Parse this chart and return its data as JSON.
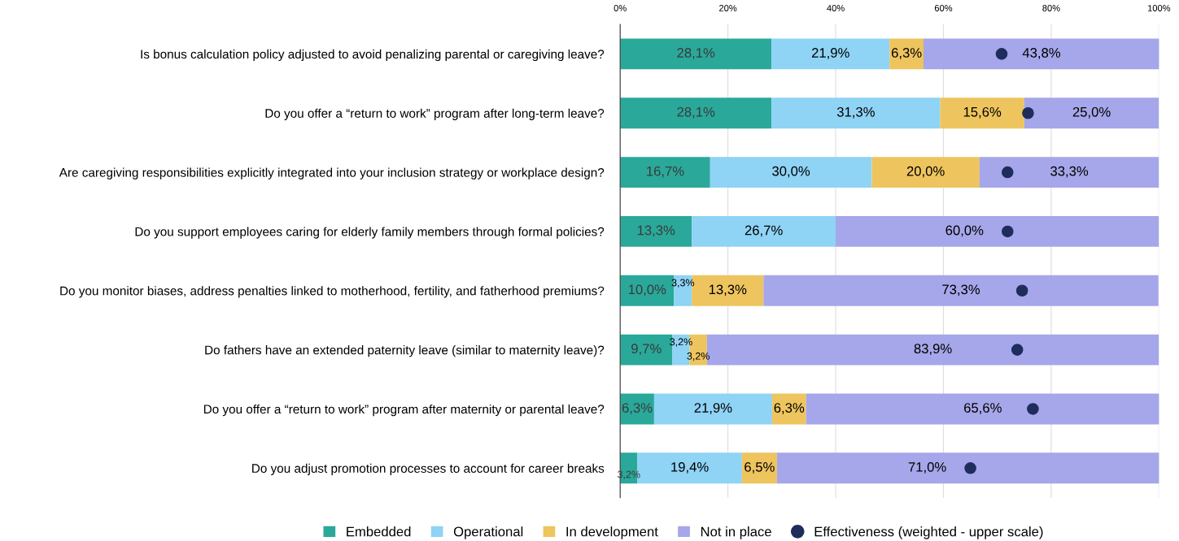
{
  "chart_data": {
    "type": "bar",
    "orientation": "horizontal",
    "stacked": true,
    "grid": "x",
    "legend": "bottom",
    "tick_labels": "x",
    "categories": [
      "Is bonus calculation policy adjusted to avoid penalizing parental or caregiving leave?",
      "Do you offer a “return to work” program after long-term leave?",
      "Are caregiving responsibilities explicitly integrated into your inclusion strategy or workplace design?",
      "Do you support employees caring for elderly family members through formal policies?",
      "Do you monitor biases, address penalties linked to motherhood, fertility, and fatherhood premiums?",
      "Do fathers have an extended paternity leave (similar to maternity leave)?",
      "Do you offer a “return to work” program after maternity or parental leave?",
      "Do you adjust promotion processes to account for career breaks"
    ],
    "xlim": [
      0,
      100
    ],
    "xticks": [
      {
        "value": 0,
        "label": "0%"
      },
      {
        "value": 20,
        "label": "20%"
      },
      {
        "value": 40,
        "label": "40%"
      },
      {
        "value": 60,
        "label": "60%"
      },
      {
        "value": 80,
        "label": "80%"
      },
      {
        "value": 100,
        "label": "100%"
      }
    ],
    "series": [
      {
        "name": "Embedded",
        "color": "#2aa89a",
        "values": [
          28.1,
          28.1,
          16.7,
          13.3,
          10.0,
          9.7,
          6.3,
          3.2
        ],
        "value_labels": [
          "28,1%",
          "28,1%",
          "16,7%",
          "13,3%",
          "10,0%",
          "9,7%",
          "6,3%",
          "3,2%"
        ]
      },
      {
        "name": "Operational",
        "color": "#8fd3f5",
        "values": [
          21.9,
          31.3,
          30.0,
          26.7,
          3.3,
          3.2,
          21.9,
          19.4
        ],
        "value_labels": [
          "21,9%",
          "31,3%",
          "30,0%",
          "26,7%",
          "3,3%",
          "3,2%",
          "21,9%",
          "19,4%"
        ]
      },
      {
        "name": "In development",
        "color": "#eec45e",
        "values": [
          6.3,
          15.6,
          20.0,
          0,
          13.3,
          3.2,
          6.3,
          6.5
        ],
        "value_labels": [
          "6,3%",
          "15,6%",
          "20,0%",
          null,
          "13,3%",
          "3,2%",
          "6,3%",
          "6,5%"
        ]
      },
      {
        "name": "Not in place",
        "color": "#a6a6ea",
        "values": [
          43.8,
          25.0,
          33.3,
          60.0,
          73.3,
          83.9,
          65.6,
          71.0
        ],
        "value_labels": [
          "43,8%",
          "25,0%",
          "33,3%",
          "60,0%",
          "73,3%",
          "83,9%",
          "65,6%",
          "71,0%"
        ]
      },
      {
        "name": "Effectiveness (weighted - upper scale)",
        "type": "scatter",
        "marker": "circle",
        "color": "#1f2d5c",
        "values": [
          70.8,
          75.7,
          71.9,
          71.9,
          74.6,
          73.7,
          76.6,
          65.0
        ]
      }
    ]
  }
}
